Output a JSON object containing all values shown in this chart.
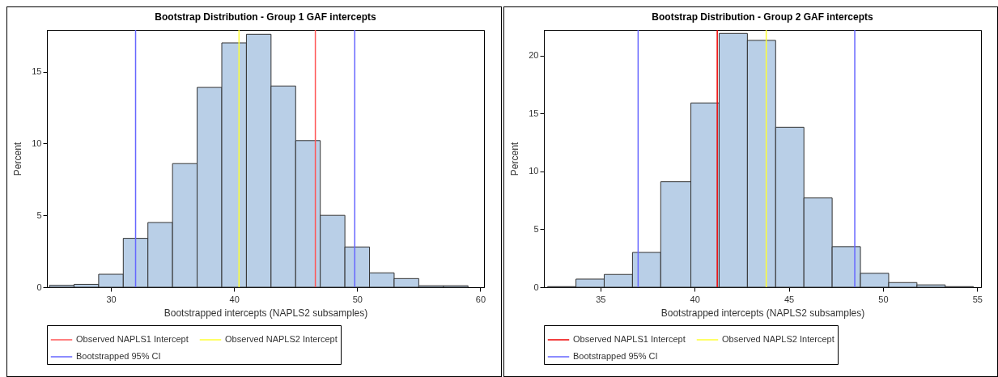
{
  "chart_data": [
    {
      "type": "histogram",
      "title": "Bootstrap Distribution - Group 1 GAF intercepts",
      "xlabel": "Bootstrapped intercepts (NAPLS2 subsamples)",
      "ylabel": "Percent",
      "color": "#b9cfe7",
      "bins": [
        25,
        27,
        29,
        31,
        33,
        35,
        37,
        39,
        41,
        43,
        45,
        47,
        49,
        51,
        53,
        55,
        57,
        59
      ],
      "values": [
        0.13,
        0.2,
        0.9,
        3.4,
        4.5,
        8.6,
        13.9,
        17.0,
        17.6,
        14.0,
        10.2,
        5.0,
        2.8,
        1.0,
        0.6,
        0.1,
        0.1
      ],
      "xlim": [
        24.8,
        60.3
      ],
      "xticks": [
        30,
        40,
        50,
        60
      ],
      "ylim": [
        0,
        17.9
      ],
      "yticks": [
        0,
        5,
        10,
        15
      ],
      "ref_lines": [
        {
          "axis": "x",
          "value": 46.6,
          "label": "Observed NAPLS1 Intercept",
          "color": "#ff5555"
        },
        {
          "axis": "x",
          "value": 40.4,
          "label": "Observed NAPLS2 Intercept",
          "color": "#ffff33"
        },
        {
          "axis": "x",
          "value": 32.0,
          "label": "Bootstrapped 95% CI",
          "color": "#6666ff"
        },
        {
          "axis": "x",
          "value": 49.8,
          "color": "#6666ff"
        }
      ],
      "legend": "bottom"
    },
    {
      "type": "histogram",
      "title": "Bootstrap Distribution - Group 2 GAF intercepts",
      "xlabel": "Bootstrapped intercepts (NAPLS2 subsamples)",
      "ylabel": "Percent",
      "color": "#b9cfe7",
      "bins": [
        32.2,
        33.7,
        35.2,
        36.7,
        38.2,
        39.8,
        41.3,
        42.8,
        44.3,
        45.8,
        47.3,
        48.8,
        50.3,
        51.8,
        53.3,
        54.8
      ],
      "values": [
        0.05,
        0.7,
        1.1,
        3.0,
        9.1,
        15.9,
        21.9,
        21.3,
        13.8,
        7.7,
        3.5,
        1.2,
        0.4,
        0.2,
        0.05
      ],
      "xlim": [
        32.0,
        55.2
      ],
      "xticks": [
        35,
        40,
        45,
        50,
        55
      ],
      "ylim": [
        0,
        22.2
      ],
      "yticks": [
        0,
        5,
        10,
        15,
        20
      ],
      "ref_lines": [
        {
          "axis": "x",
          "value": 41.2,
          "label": "Observed NAPLS1 Intercept",
          "color": "#ee0000"
        },
        {
          "axis": "x",
          "value": 43.8,
          "label": "Observed NAPLS2 Intercept",
          "color": "#ffff33"
        },
        {
          "axis": "x",
          "value": 37.0,
          "label": "Bootstrapped 95% CI",
          "color": "#6666ff"
        },
        {
          "axis": "x",
          "value": 48.5,
          "color": "#6666ff"
        }
      ],
      "legend": "bottom"
    }
  ]
}
